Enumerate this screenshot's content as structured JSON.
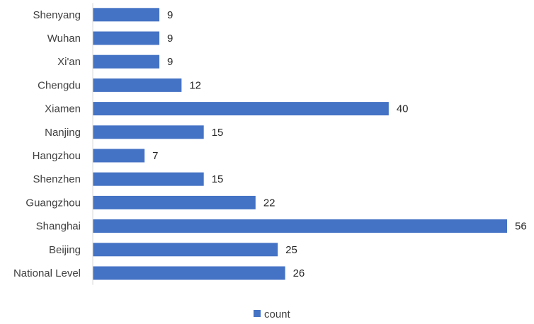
{
  "chart_data": {
    "type": "bar",
    "orientation": "horizontal",
    "categories": [
      "National Level",
      "Beijing",
      "Shanghai",
      "Guangzhou",
      "Shenzhen",
      "Hangzhou",
      "Nanjing",
      "Xiamen",
      "Chengdu",
      "Xi'an",
      "Wuhan",
      "Shenyang"
    ],
    "series": [
      {
        "name": "count",
        "values": [
          26,
          25,
          56,
          22,
          15,
          7,
          15,
          40,
          12,
          9,
          9,
          9
        ]
      }
    ],
    "xlim": [
      0,
      56
    ],
    "grid": false,
    "legend": "bottom-center",
    "bar_color": "#4472C4"
  },
  "legend": {
    "label": "count"
  }
}
